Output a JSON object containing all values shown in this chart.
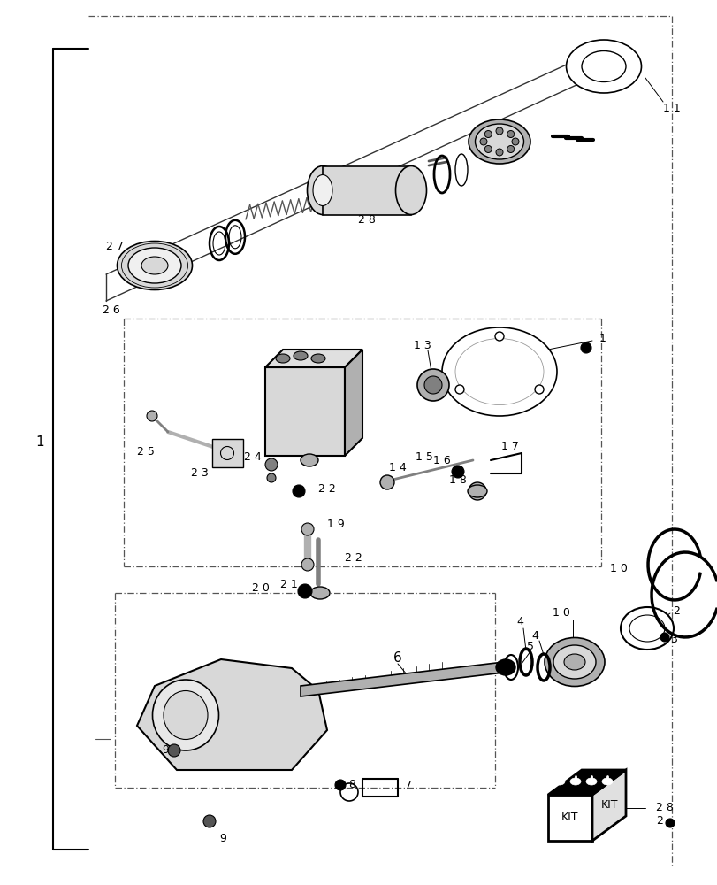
{
  "bg_color": "#ffffff",
  "line_color": "#000000",
  "gray_light": "#d8d8d8",
  "gray_mid": "#b0b0b0",
  "gray_dark": "#808080",
  "black": "#000000",
  "dashdot_color": "#666666"
}
